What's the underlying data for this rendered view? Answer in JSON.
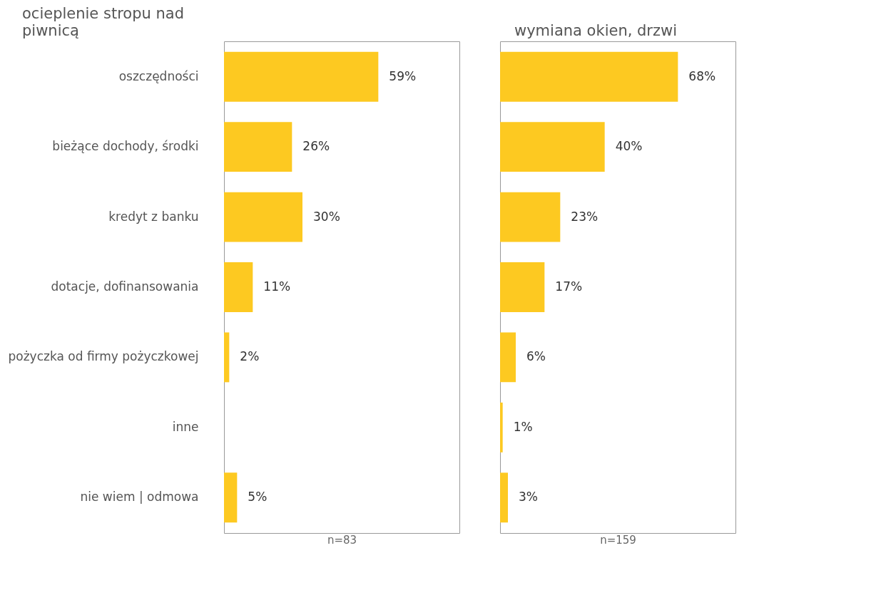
{
  "chart_data": [
    {
      "type": "bar",
      "orientation": "horizontal",
      "title": "ocieplenie stropu nad piwnicą",
      "categories": [
        "oszczędności",
        "bieżące dochody, środki",
        "kredyt z banku",
        "dotacje, dofinansowania",
        "pożyczka od firmy pożyczkowej",
        "inne",
        "nie wiem | odmowa"
      ],
      "values": [
        59,
        26,
        30,
        11,
        2,
        null,
        5
      ],
      "value_labels": [
        "59%",
        "26%",
        "30%",
        "11%",
        "2%",
        null,
        "5%"
      ],
      "color": "#fdc921",
      "xlim": [
        0,
        90
      ],
      "tick_labels": "y",
      "annotations": [
        "n=83"
      ]
    },
    {
      "type": "bar",
      "orientation": "horizontal",
      "title": "wymiana okien, drzwi",
      "categories": [
        null,
        null,
        null,
        null,
        null,
        null,
        null
      ],
      "values": [
        68,
        40,
        23,
        17,
        6,
        1,
        3
      ],
      "value_labels": [
        "68%",
        "40%",
        "23%",
        "17%",
        "6%",
        "1%",
        "3%"
      ],
      "color": "#fdc921",
      "xlim": [
        0,
        90
      ],
      "tick_labels": false,
      "annotations": [
        "n=159"
      ]
    }
  ]
}
